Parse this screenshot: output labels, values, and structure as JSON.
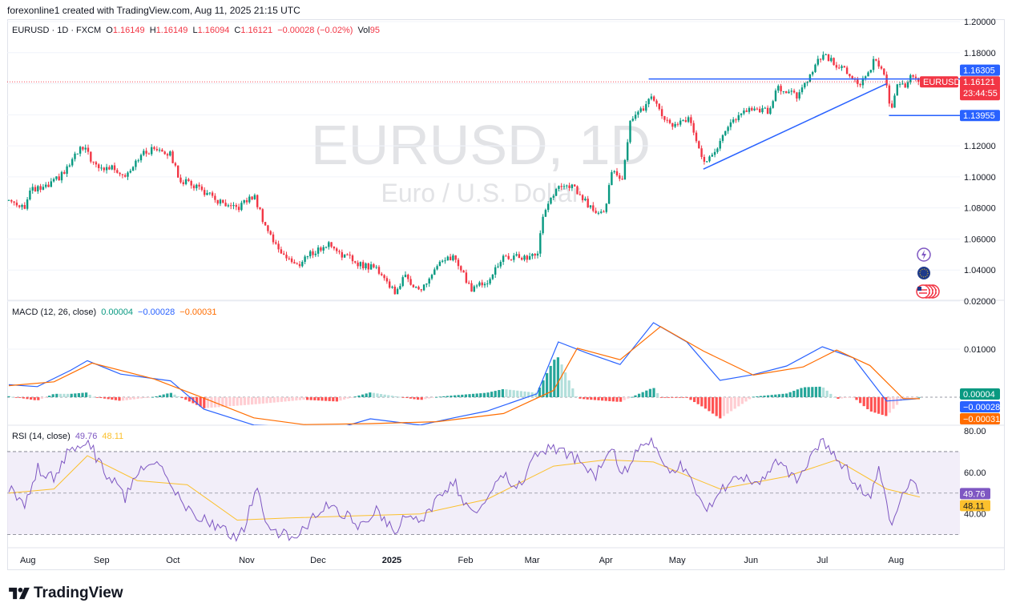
{
  "caption": "forexonline1 created with TradingView.com, Aug 11, 2025 21:15 UTC",
  "brand": "TradingView",
  "legend": {
    "symbol": "EURUSD · 1D · FXCM",
    "open_label": "O",
    "open": "1.16149",
    "high_label": "H",
    "high": "1.16149",
    "low_label": "L",
    "low": "1.16094",
    "close_label": "C",
    "close": "1.16121",
    "change": "−0.00028 (−0.02%)",
    "vol_label": "Vol",
    "vol": "95"
  },
  "watermark": {
    "ticker": "EURUSD, 1D",
    "name": "Euro / U.S. Dollar"
  },
  "colors": {
    "up": "#089981",
    "down": "#f23645",
    "trend": "#2962ff",
    "macd": "#2962ff",
    "signal": "#ff6d00",
    "rsi": "#7e57c2",
    "rsi_ma": "#fbc02d",
    "rsi_band": "#ede7f6"
  },
  "chart_data": [
    {
      "type": "candlestick",
      "title": "EURUSD · 1D · FXCM",
      "ylim": [
        1.02,
        1.2
      ],
      "y_ticks": [
        "1.20000",
        "1.18000",
        "1.16000",
        "1.14000",
        "1.12000",
        "1.10000",
        "1.08000",
        "1.06000",
        "1.04000"
      ],
      "x_ticks": [
        "Aug",
        "Sep",
        "Oct",
        "Nov",
        "Dec",
        "2025",
        "Feb",
        "Mar",
        "Apr",
        "May",
        "Jun",
        "Jul",
        "Aug"
      ],
      "close_series": [
        [
          "2024-07-24",
          1.085
        ],
        [
          "2024-07-31",
          1.081
        ],
        [
          "2024-08-02",
          1.091
        ],
        [
          "2024-08-09",
          1.093
        ],
        [
          "2024-08-16",
          1.102
        ],
        [
          "2024-08-23",
          1.118
        ],
        [
          "2024-08-26",
          1.116
        ],
        [
          "2024-08-30",
          1.105
        ],
        [
          "2024-09-06",
          1.106
        ],
        [
          "2024-09-11",
          1.101
        ],
        [
          "2024-09-16",
          1.112
        ],
        [
          "2024-09-20",
          1.116
        ],
        [
          "2024-09-25",
          1.119
        ],
        [
          "2024-09-30",
          1.114
        ],
        [
          "2024-10-04",
          1.098
        ],
        [
          "2024-10-11",
          1.094
        ],
        [
          "2024-10-18",
          1.086
        ],
        [
          "2024-10-25",
          1.079
        ],
        [
          "2024-10-29",
          1.081
        ],
        [
          "2024-11-04",
          1.088
        ],
        [
          "2024-11-08",
          1.072
        ],
        [
          "2024-11-13",
          1.056
        ],
        [
          "2024-11-22",
          1.042
        ],
        [
          "2024-11-26",
          1.049
        ],
        [
          "2024-12-06",
          1.057
        ],
        [
          "2024-12-12",
          1.049
        ],
        [
          "2024-12-20",
          1.043
        ],
        [
          "2024-12-26",
          1.041
        ],
        [
          "2025-01-02",
          1.026
        ],
        [
          "2025-01-07",
          1.036
        ],
        [
          "2025-01-13",
          1.026
        ],
        [
          "2025-01-20",
          1.042
        ],
        [
          "2025-01-27",
          1.049
        ],
        [
          "2025-02-03",
          1.028
        ],
        [
          "2025-02-10",
          1.033
        ],
        [
          "2025-02-17",
          1.048
        ],
        [
          "2025-02-24",
          1.048
        ],
        [
          "2025-03-03",
          1.049
        ],
        [
          "2025-03-06",
          1.078
        ],
        [
          "2025-03-11",
          1.092
        ],
        [
          "2025-03-18",
          1.094
        ],
        [
          "2025-03-26",
          1.079
        ],
        [
          "2025-04-01",
          1.079
        ],
        [
          "2025-04-03",
          1.105
        ],
        [
          "2025-04-08",
          1.096
        ],
        [
          "2025-04-11",
          1.136
        ],
        [
          "2025-04-21",
          1.151
        ],
        [
          "2025-04-25",
          1.136
        ],
        [
          "2025-04-30",
          1.133
        ],
        [
          "2025-05-06",
          1.137
        ],
        [
          "2025-05-12",
          1.109
        ],
        [
          "2025-05-16",
          1.116
        ],
        [
          "2025-05-26",
          1.139
        ],
        [
          "2025-06-02",
          1.144
        ],
        [
          "2025-06-09",
          1.142
        ],
        [
          "2025-06-12",
          1.158
        ],
        [
          "2025-06-20",
          1.152
        ],
        [
          "2025-06-24",
          1.161
        ],
        [
          "2025-07-01",
          1.179
        ],
        [
          "2025-07-04",
          1.176
        ],
        [
          "2025-07-10",
          1.169
        ],
        [
          "2025-07-17",
          1.159
        ],
        [
          "2025-07-23",
          1.175
        ],
        [
          "2025-07-25",
          1.173
        ],
        [
          "2025-07-28",
          1.159
        ],
        [
          "2025-07-30",
          1.141
        ],
        [
          "2025-08-01",
          1.158
        ],
        [
          "2025-08-05",
          1.158
        ],
        [
          "2025-08-07",
          1.167
        ],
        [
          "2025-08-11",
          1.16121
        ]
      ],
      "annotations": {
        "last_price": "1.16121",
        "symbol_tag": "EURUSD",
        "countdown": "23:44:55",
        "resistance": {
          "value": 1.16305,
          "label": "1.16305"
        },
        "support": {
          "value": 1.13955,
          "label": "1.13955"
        },
        "trendline": [
          [
            "2025-05-12",
            1.105
          ],
          [
            "2025-07-28",
            1.16
          ]
        ]
      }
    },
    {
      "type": "line",
      "title": "MACD (12, 26, close)",
      "values_shown": {
        "histogram": "0.00004",
        "macd": "−0.00028",
        "signal": "−0.00031"
      },
      "ylim": [
        -0.006,
        0.02
      ],
      "y_ticks": [
        "0.02000",
        "0.01000"
      ],
      "macd_series": [
        [
          "2024-07-24",
          0.0026
        ],
        [
          "2024-08-05",
          0.0022
        ],
        [
          "2024-08-19",
          0.0056
        ],
        [
          "2024-08-26",
          0.0076
        ],
        [
          "2024-09-09",
          0.0048
        ],
        [
          "2024-09-30",
          0.0034
        ],
        [
          "2024-10-14",
          -0.0025
        ],
        [
          "2024-11-04",
          -0.0058
        ],
        [
          "2024-11-18",
          -0.0061
        ],
        [
          "2024-12-09",
          -0.0065
        ],
        [
          "2024-12-23",
          -0.0045
        ],
        [
          "2025-01-13",
          -0.0058
        ],
        [
          "2025-01-27",
          -0.0043
        ],
        [
          "2025-02-10",
          -0.0029
        ],
        [
          "2025-03-03",
          0.0007
        ],
        [
          "2025-03-12",
          0.0115
        ],
        [
          "2025-03-24",
          0.0092
        ],
        [
          "2025-04-07",
          0.0068
        ],
        [
          "2025-04-21",
          0.0155
        ],
        [
          "2025-05-05",
          0.0115
        ],
        [
          "2025-05-19",
          0.0035
        ],
        [
          "2025-06-02",
          0.0047
        ],
        [
          "2025-06-16",
          0.0065
        ],
        [
          "2025-07-01",
          0.0105
        ],
        [
          "2025-07-14",
          0.0082
        ],
        [
          "2025-07-28",
          -0.0008
        ],
        [
          "2025-08-11",
          -0.00028
        ]
      ],
      "signal_series": [
        [
          "2024-07-24",
          0.0024
        ],
        [
          "2024-08-12",
          0.0032
        ],
        [
          "2024-08-28",
          0.0071
        ],
        [
          "2024-09-23",
          0.0038
        ],
        [
          "2024-10-14",
          -0.0002
        ],
        [
          "2024-11-04",
          -0.0043
        ],
        [
          "2024-11-25",
          -0.0057
        ],
        [
          "2024-12-23",
          -0.0055
        ],
        [
          "2025-01-20",
          -0.0051
        ],
        [
          "2025-02-17",
          -0.0034
        ],
        [
          "2025-03-10",
          0.0014
        ],
        [
          "2025-03-20",
          0.0102
        ],
        [
          "2025-04-07",
          0.0078
        ],
        [
          "2025-04-24",
          0.0147
        ],
        [
          "2025-05-12",
          0.0096
        ],
        [
          "2025-06-02",
          0.0046
        ],
        [
          "2025-06-23",
          0.0063
        ],
        [
          "2025-07-07",
          0.0098
        ],
        [
          "2025-07-21",
          0.0066
        ],
        [
          "2025-08-04",
          -0.0003
        ],
        [
          "2025-08-11",
          -0.00031
        ]
      ]
    },
    {
      "type": "line",
      "title": "RSI (14, close)",
      "values_shown": {
        "rsi": "49.76",
        "rsi_ma": "48.11"
      },
      "ylim": [
        26,
        80
      ],
      "y_ticks": [
        "80.00",
        "60.00",
        "40.00"
      ],
      "bands": [
        30,
        70
      ],
      "rsi_series": [
        [
          "2024-07-24",
          52
        ],
        [
          "2024-07-31",
          44
        ],
        [
          "2024-08-05",
          62
        ],
        [
          "2024-08-12",
          58
        ],
        [
          "2024-08-19",
          72
        ],
        [
          "2024-08-26",
          76
        ],
        [
          "2024-09-02",
          60
        ],
        [
          "2024-09-06",
          57
        ],
        [
          "2024-09-11",
          48
        ],
        [
          "2024-09-18",
          62
        ],
        [
          "2024-09-25",
          63
        ],
        [
          "2024-09-30",
          55
        ],
        [
          "2024-10-07",
          42
        ],
        [
          "2024-10-14",
          38
        ],
        [
          "2024-10-21",
          33
        ],
        [
          "2024-10-28",
          28
        ],
        [
          "2024-11-01",
          36
        ],
        [
          "2024-11-05",
          54
        ],
        [
          "2024-11-08",
          40
        ],
        [
          "2024-11-13",
          31
        ],
        [
          "2024-11-22",
          28
        ],
        [
          "2024-11-28",
          38
        ],
        [
          "2024-12-06",
          45
        ],
        [
          "2024-12-12",
          40
        ],
        [
          "2024-12-19",
          33
        ],
        [
          "2024-12-26",
          42
        ],
        [
          "2025-01-02",
          31
        ],
        [
          "2025-01-07",
          40
        ],
        [
          "2025-01-13",
          35
        ],
        [
          "2025-01-20",
          48
        ],
        [
          "2025-01-27",
          56
        ],
        [
          "2025-02-03",
          40
        ],
        [
          "2025-02-10",
          48
        ],
        [
          "2025-02-17",
          58
        ],
        [
          "2025-02-24",
          53
        ],
        [
          "2025-03-04",
          72
        ],
        [
          "2025-03-12",
          70
        ],
        [
          "2025-03-20",
          66
        ],
        [
          "2025-03-27",
          57
        ],
        [
          "2025-04-03",
          74
        ],
        [
          "2025-04-08",
          58
        ],
        [
          "2025-04-14",
          72
        ],
        [
          "2025-04-21",
          74
        ],
        [
          "2025-04-28",
          62
        ],
        [
          "2025-05-05",
          63
        ],
        [
          "2025-05-12",
          42
        ],
        [
          "2025-05-19",
          50
        ],
        [
          "2025-05-26",
          58
        ],
        [
          "2025-06-05",
          56
        ],
        [
          "2025-06-12",
          66
        ],
        [
          "2025-06-20",
          55
        ],
        [
          "2025-07-01",
          76
        ],
        [
          "2025-07-08",
          66
        ],
        [
          "2025-07-15",
          55
        ],
        [
          "2025-07-21",
          48
        ],
        [
          "2025-07-25",
          62
        ],
        [
          "2025-07-30",
          32
        ],
        [
          "2025-08-04",
          50
        ],
        [
          "2025-08-07",
          57
        ],
        [
          "2025-08-11",
          49.76
        ]
      ],
      "rsi_ma_series": [
        [
          "2024-07-24",
          50
        ],
        [
          "2024-08-12",
          52
        ],
        [
          "2024-08-26",
          68
        ],
        [
          "2024-09-16",
          56
        ],
        [
          "2024-10-07",
          54
        ],
        [
          "2024-10-28",
          37
        ],
        [
          "2024-11-18",
          38
        ],
        [
          "2024-12-16",
          39
        ],
        [
          "2025-01-13",
          40
        ],
        [
          "2025-02-10",
          47
        ],
        [
          "2025-03-10",
          63
        ],
        [
          "2025-04-01",
          66
        ],
        [
          "2025-04-21",
          65
        ],
        [
          "2025-05-19",
          52
        ],
        [
          "2025-06-16",
          58
        ],
        [
          "2025-07-07",
          66
        ],
        [
          "2025-07-28",
          52
        ],
        [
          "2025-08-11",
          48.11
        ]
      ]
    }
  ]
}
